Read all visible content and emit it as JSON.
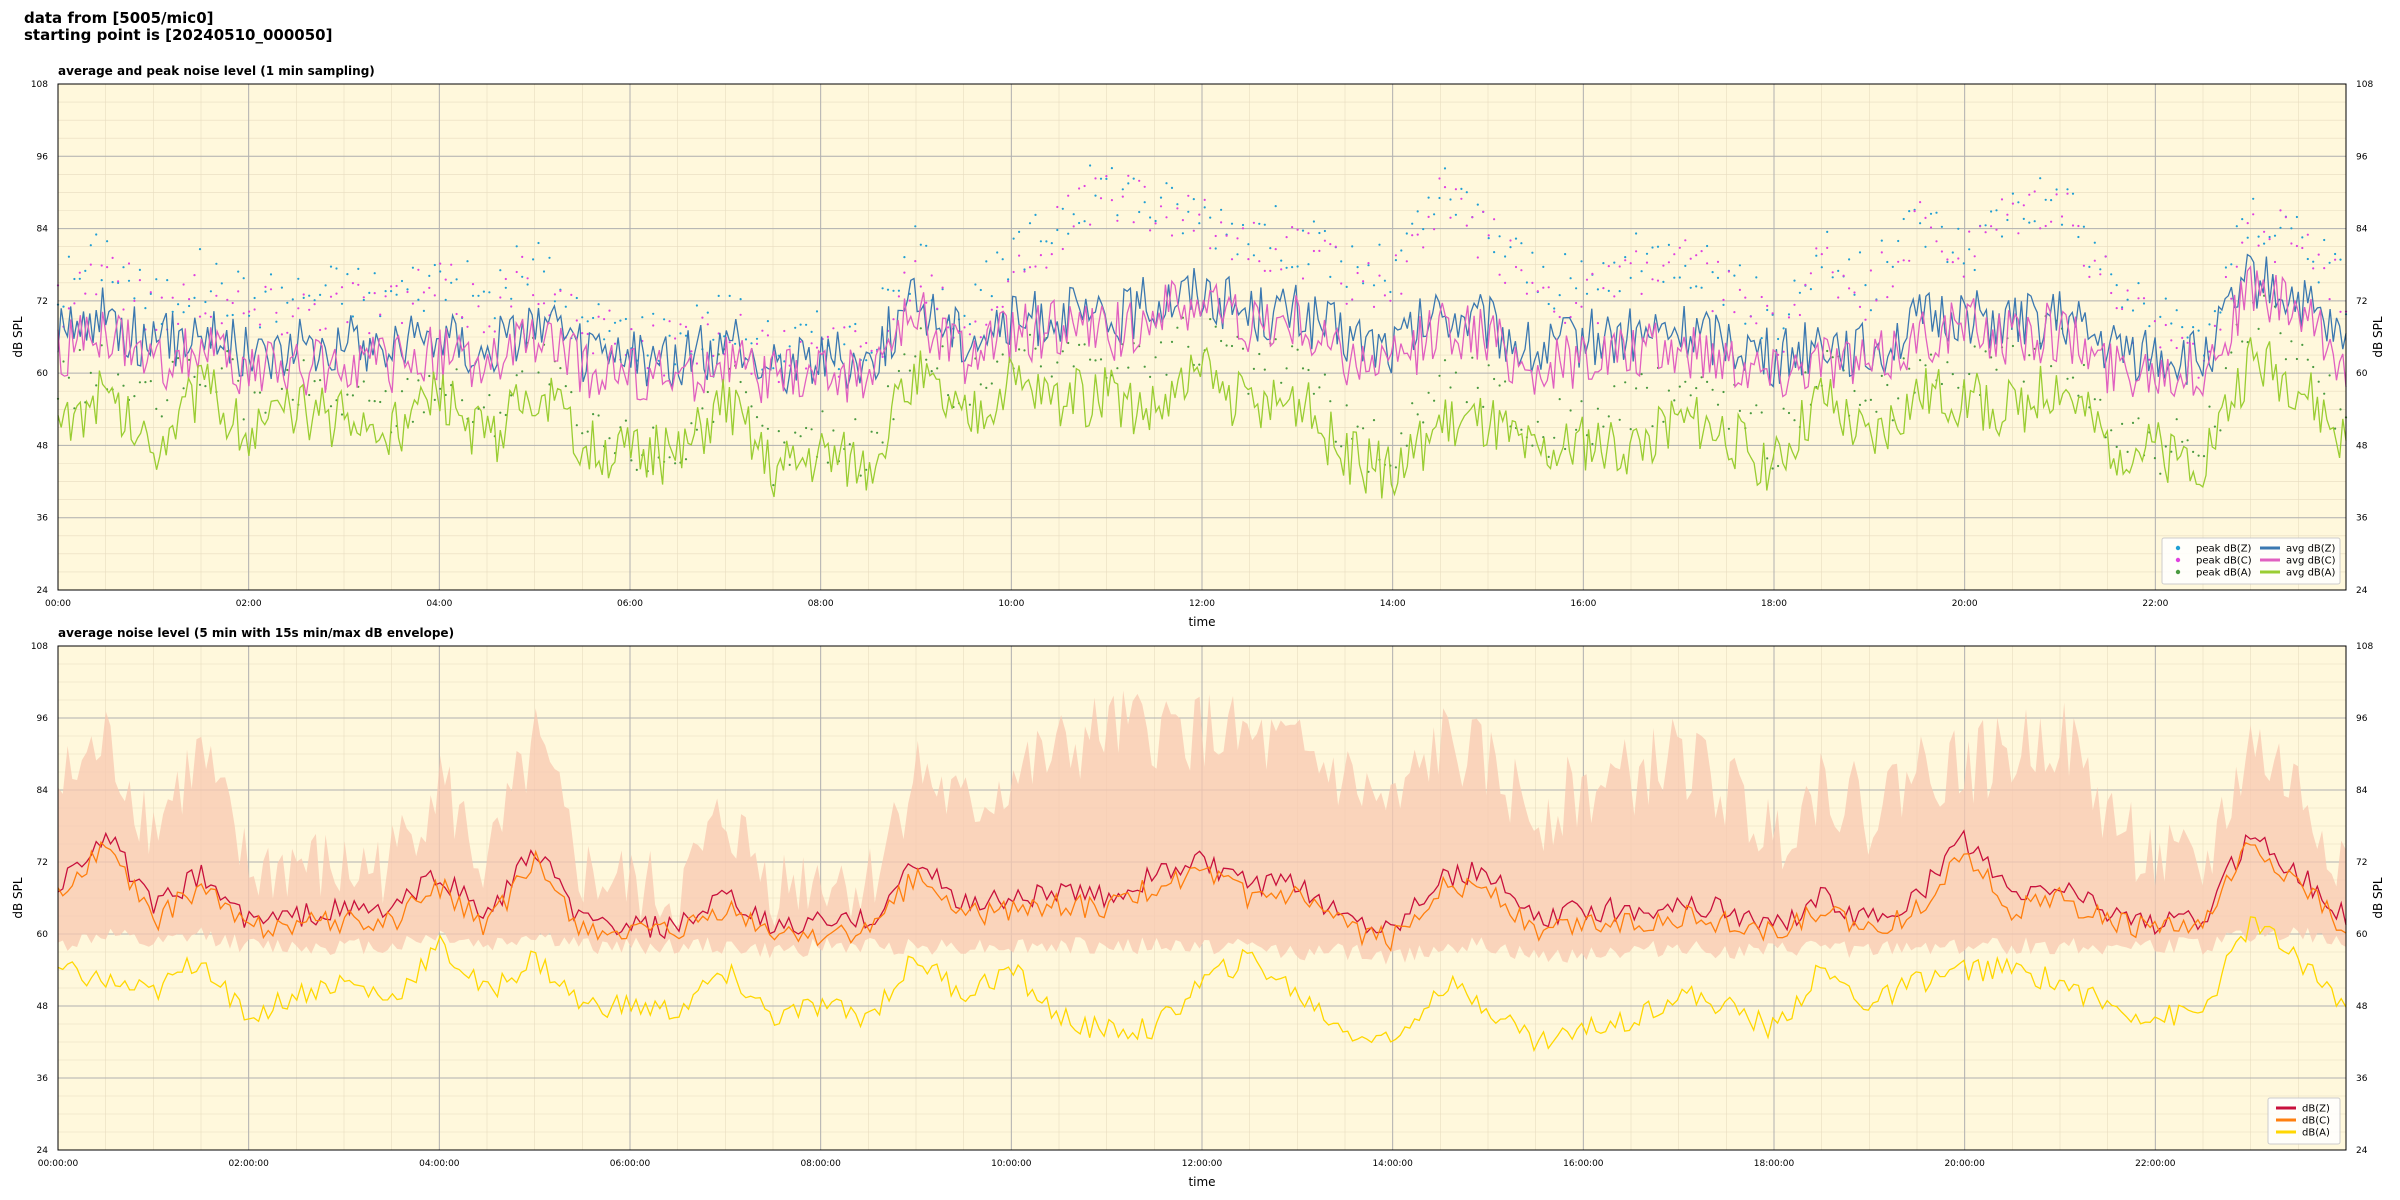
{
  "header": {
    "line1": "data from [5005/mic0]",
    "line2": "starting point is [20240510_000050]"
  },
  "chart_data": [
    {
      "type": "line",
      "title": "average and peak noise level (1 min sampling)",
      "xlabel": "time",
      "ylabel": "dB SPL",
      "ylabel_right": "dB SPL",
      "xlim": [
        0,
        24
      ],
      "ylim": [
        24,
        108
      ],
      "x_ticks": [
        0,
        2,
        4,
        6,
        8,
        10,
        12,
        14,
        16,
        18,
        20,
        22
      ],
      "x_tick_labels": [
        "00:00",
        "02:00",
        "04:00",
        "06:00",
        "08:00",
        "10:00",
        "12:00",
        "14:00",
        "16:00",
        "18:00",
        "20:00",
        "22:00"
      ],
      "y_ticks": [
        24,
        36,
        48,
        60,
        72,
        84,
        96,
        108
      ],
      "y_tick_labels": [
        "24",
        "36",
        "48",
        "60",
        "72",
        "84",
        "96",
        "108"
      ],
      "grid": true,
      "background": "#fff8dc",
      "legend_position": "bottom-right",
      "x": [
        0,
        0.5,
        1,
        1.5,
        2,
        2.5,
        3,
        3.5,
        4,
        4.5,
        5,
        5.5,
        6,
        6.5,
        7,
        7.5,
        8,
        8.5,
        9,
        9.5,
        10,
        10.5,
        11,
        11.5,
        12,
        12.5,
        13,
        13.5,
        14,
        14.5,
        15,
        15.5,
        16,
        16.5,
        17,
        17.5,
        18,
        18.5,
        19,
        19.5,
        20,
        20.5,
        21,
        21.5,
        22,
        22.5,
        23,
        23.5,
        24
      ],
      "series": [
        {
          "name": "peak dB(Z)",
          "marker": "dot",
          "color": "#1f9fd4",
          "values": [
            74,
            80,
            71,
            76,
            72,
            73,
            74,
            73,
            76,
            72,
            79,
            68,
            67,
            66,
            70,
            64,
            66,
            65,
            80,
            70,
            78,
            86,
            92,
            88,
            86,
            84,
            82,
            78,
            76,
            90,
            84,
            76,
            74,
            78,
            80,
            76,
            68,
            80,
            74,
            86,
            80,
            88,
            90,
            76,
            68,
            66,
            86,
            84,
            74
          ]
        },
        {
          "name": "peak dB(C)",
          "marker": "dot",
          "color": "#e040e0",
          "values": [
            72,
            78,
            70,
            74,
            70,
            71,
            72,
            71,
            74,
            70,
            77,
            66,
            65,
            64,
            68,
            62,
            64,
            63,
            78,
            68,
            76,
            84,
            90,
            86,
            84,
            82,
            80,
            76,
            74,
            88,
            82,
            74,
            72,
            76,
            78,
            74,
            66,
            78,
            72,
            84,
            78,
            86,
            88,
            74,
            66,
            64,
            84,
            82,
            72
          ]
        },
        {
          "name": "peak dB(A)",
          "marker": "dot",
          "color": "#4a9a40",
          "values": [
            58,
            60,
            54,
            62,
            56,
            58,
            56,
            54,
            60,
            52,
            64,
            50,
            48,
            47,
            60,
            46,
            50,
            47,
            66,
            56,
            64,
            62,
            64,
            62,
            66,
            60,
            62,
            50,
            46,
            60,
            58,
            50,
            52,
            54,
            58,
            56,
            48,
            62,
            52,
            62,
            60,
            62,
            66,
            52,
            48,
            47,
            70,
            66,
            52
          ]
        },
        {
          "name": "avg dB(Z)",
          "color": "#3b78b0",
          "values": [
            66,
            70,
            64,
            68,
            63,
            64,
            65,
            64,
            67,
            63,
            69,
            63,
            62,
            62,
            65,
            61,
            63,
            62,
            72,
            66,
            68,
            70,
            68,
            72,
            74,
            70,
            70,
            66,
            64,
            70,
            68,
            63,
            66,
            66,
            67,
            66,
            62,
            66,
            63,
            68,
            70,
            68,
            69,
            64,
            63,
            62,
            76,
            72,
            64
          ]
        },
        {
          "name": "avg dB(C)",
          "color": "#e060c0",
          "values": [
            63,
            67,
            61,
            65,
            60,
            61,
            62,
            61,
            64,
            60,
            66,
            61,
            60,
            59,
            62,
            59,
            60,
            60,
            70,
            63,
            66,
            68,
            66,
            70,
            72,
            68,
            68,
            63,
            61,
            68,
            66,
            60,
            63,
            63,
            64,
            63,
            60,
            63,
            61,
            66,
            68,
            66,
            67,
            61,
            61,
            60,
            74,
            70,
            61
          ]
        },
        {
          "name": "avg dB(A)",
          "color": "#9acd32",
          "values": [
            52,
            56,
            48,
            58,
            50,
            54,
            52,
            50,
            56,
            48,
            58,
            48,
            47,
            46,
            56,
            44,
            47,
            45,
            60,
            52,
            58,
            56,
            56,
            54,
            60,
            54,
            56,
            46,
            43,
            52,
            52,
            46,
            48,
            48,
            52,
            50,
            44,
            56,
            48,
            56,
            56,
            54,
            58,
            48,
            47,
            46,
            62,
            58,
            48
          ]
        }
      ]
    },
    {
      "type": "line",
      "title": "average noise level (5 min with 15s min/max dB envelope)",
      "xlabel": "time",
      "ylabel": "dB SPL",
      "ylabel_right": "dB SPL",
      "xlim": [
        0,
        24
      ],
      "ylim": [
        24,
        108
      ],
      "x_ticks": [
        0,
        2,
        4,
        6,
        8,
        10,
        12,
        14,
        16,
        18,
        20,
        22
      ],
      "x_tick_labels": [
        "00:00:00",
        "02:00:00",
        "04:00:00",
        "06:00:00",
        "08:00:00",
        "10:00:00",
        "12:00:00",
        "14:00:00",
        "16:00:00",
        "18:00:00",
        "20:00:00",
        "22:00:00"
      ],
      "y_ticks": [
        24,
        36,
        48,
        60,
        72,
        84,
        96,
        108
      ],
      "y_tick_labels": [
        "24",
        "36",
        "48",
        "60",
        "72",
        "84",
        "96",
        "108"
      ],
      "grid": true,
      "background": "#fff8dc",
      "legend_position": "bottom-right",
      "envelope_color": "#f8c8b0",
      "x": [
        0,
        0.5,
        1,
        1.5,
        2,
        2.5,
        3,
        3.5,
        4,
        4.5,
        5,
        5.5,
        6,
        6.5,
        7,
        7.5,
        8,
        8.5,
        9,
        9.5,
        10,
        10.5,
        11,
        11.5,
        12,
        12.5,
        13,
        13.5,
        14,
        14.5,
        15,
        15.5,
        16,
        16.5,
        17,
        17.5,
        18,
        18.5,
        19,
        19.5,
        20,
        20.5,
        21,
        21.5,
        22,
        22.5,
        23,
        23.5,
        24
      ],
      "envelope_max": [
        84,
        92,
        78,
        90,
        70,
        72,
        70,
        72,
        86,
        70,
        92,
        70,
        68,
        66,
        80,
        68,
        70,
        68,
        88,
        80,
        86,
        90,
        94,
        94,
        94,
        92,
        90,
        86,
        80,
        92,
        88,
        80,
        84,
        86,
        90,
        84,
        76,
        86,
        80,
        88,
        88,
        90,
        94,
        80,
        72,
        70,
        92,
        84,
        72
      ],
      "envelope_min": [
        58,
        60,
        58,
        60,
        58,
        58,
        58,
        58,
        60,
        58,
        60,
        58,
        58,
        58,
        58,
        57,
        58,
        58,
        58,
        58,
        58,
        58,
        58,
        58,
        58,
        58,
        57,
        57,
        56,
        58,
        58,
        56,
        57,
        57,
        58,
        57,
        57,
        58,
        57,
        58,
        58,
        58,
        58,
        58,
        58,
        58,
        60,
        60,
        58
      ],
      "series": [
        {
          "name": "dB(Z)",
          "color": "#c8103c",
          "values": [
            68,
            77,
            64,
            70,
            62,
            63,
            64,
            64,
            70,
            63,
            74,
            62,
            61,
            61,
            66,
            61,
            62,
            62,
            72,
            65,
            66,
            67,
            66,
            70,
            72,
            68,
            68,
            63,
            61,
            70,
            70,
            62,
            64,
            64,
            65,
            64,
            61,
            66,
            62,
            66,
            76,
            66,
            68,
            64,
            62,
            62,
            77,
            70,
            63
          ]
        },
        {
          "name": "dB(C)",
          "color": "#ff7f0e",
          "values": [
            66,
            75,
            62,
            68,
            61,
            62,
            62,
            62,
            68,
            61,
            72,
            61,
            60,
            60,
            64,
            60,
            60,
            60,
            70,
            63,
            64,
            65,
            64,
            68,
            70,
            66,
            66,
            61,
            59,
            68,
            68,
            60,
            62,
            62,
            63,
            62,
            60,
            64,
            60,
            64,
            74,
            64,
            66,
            62,
            61,
            61,
            75,
            68,
            61
          ]
        },
        {
          "name": "dB(A)",
          "color": "#ffd700",
          "values": [
            54,
            52,
            50,
            56,
            46,
            50,
            52,
            49,
            58,
            50,
            56,
            48,
            48,
            47,
            54,
            46,
            48,
            46,
            56,
            50,
            54,
            46,
            44,
            44,
            52,
            56,
            50,
            44,
            42,
            52,
            48,
            42,
            44,
            46,
            50,
            48,
            44,
            54,
            48,
            52,
            54,
            54,
            52,
            48,
            46,
            47,
            62,
            56,
            48
          ]
        }
      ]
    }
  ]
}
